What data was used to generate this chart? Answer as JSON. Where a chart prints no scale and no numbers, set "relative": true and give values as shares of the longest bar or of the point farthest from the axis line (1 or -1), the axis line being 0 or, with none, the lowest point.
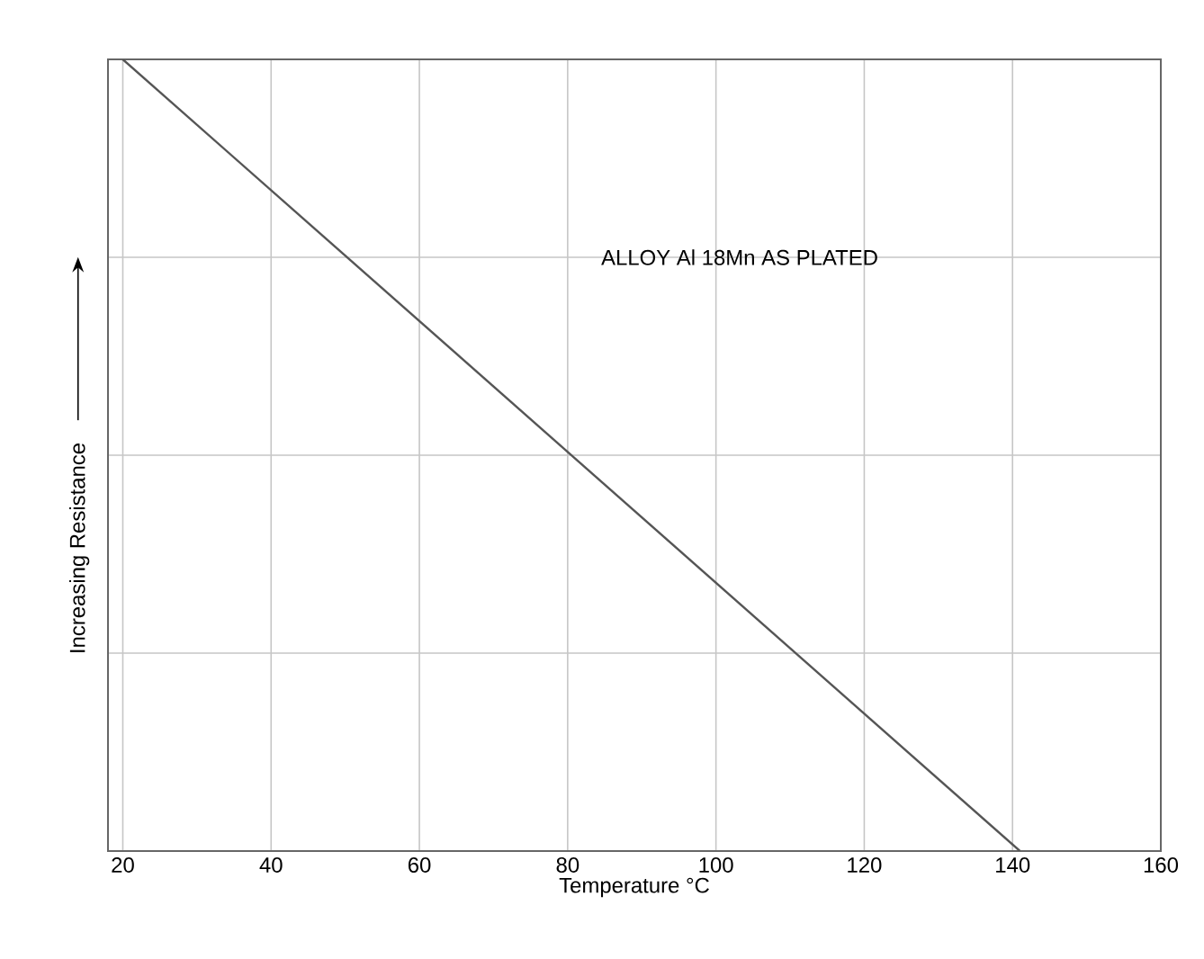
{
  "chart_data": {
    "type": "line",
    "relative": true,
    "xlabel": "Temperature   °C",
    "ylabel": "Increasing  Resistance",
    "annotations": [
      "ALLOY  Al  18Mn  AS PLATED"
    ],
    "x": [
      20,
      141
    ],
    "series": [
      {
        "color": "#555555",
        "values": [
          1,
          0
        ]
      }
    ],
    "xlim": [
      18,
      160
    ],
    "xticks": [
      20,
      40,
      60,
      80,
      100,
      120,
      140,
      160
    ],
    "grid": true
  }
}
